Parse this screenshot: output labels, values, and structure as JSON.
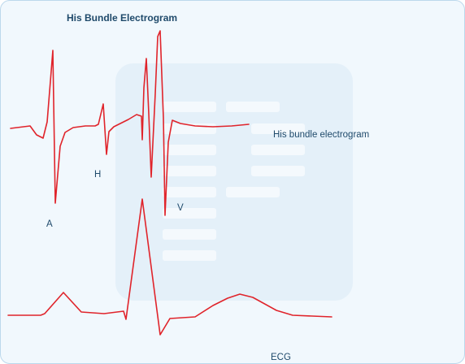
{
  "title": "His Bundle Electrogram",
  "labels": {
    "his_trace": "His bundle electrogram",
    "a_wave": "A",
    "h_wave": "H",
    "v_wave": "V",
    "ecg_trace": "ECG"
  },
  "colors": {
    "trace": "#e0242b",
    "text": "#1f4a6b",
    "background": "#f1f8fd",
    "watermark": "#e4f0f9"
  }
}
